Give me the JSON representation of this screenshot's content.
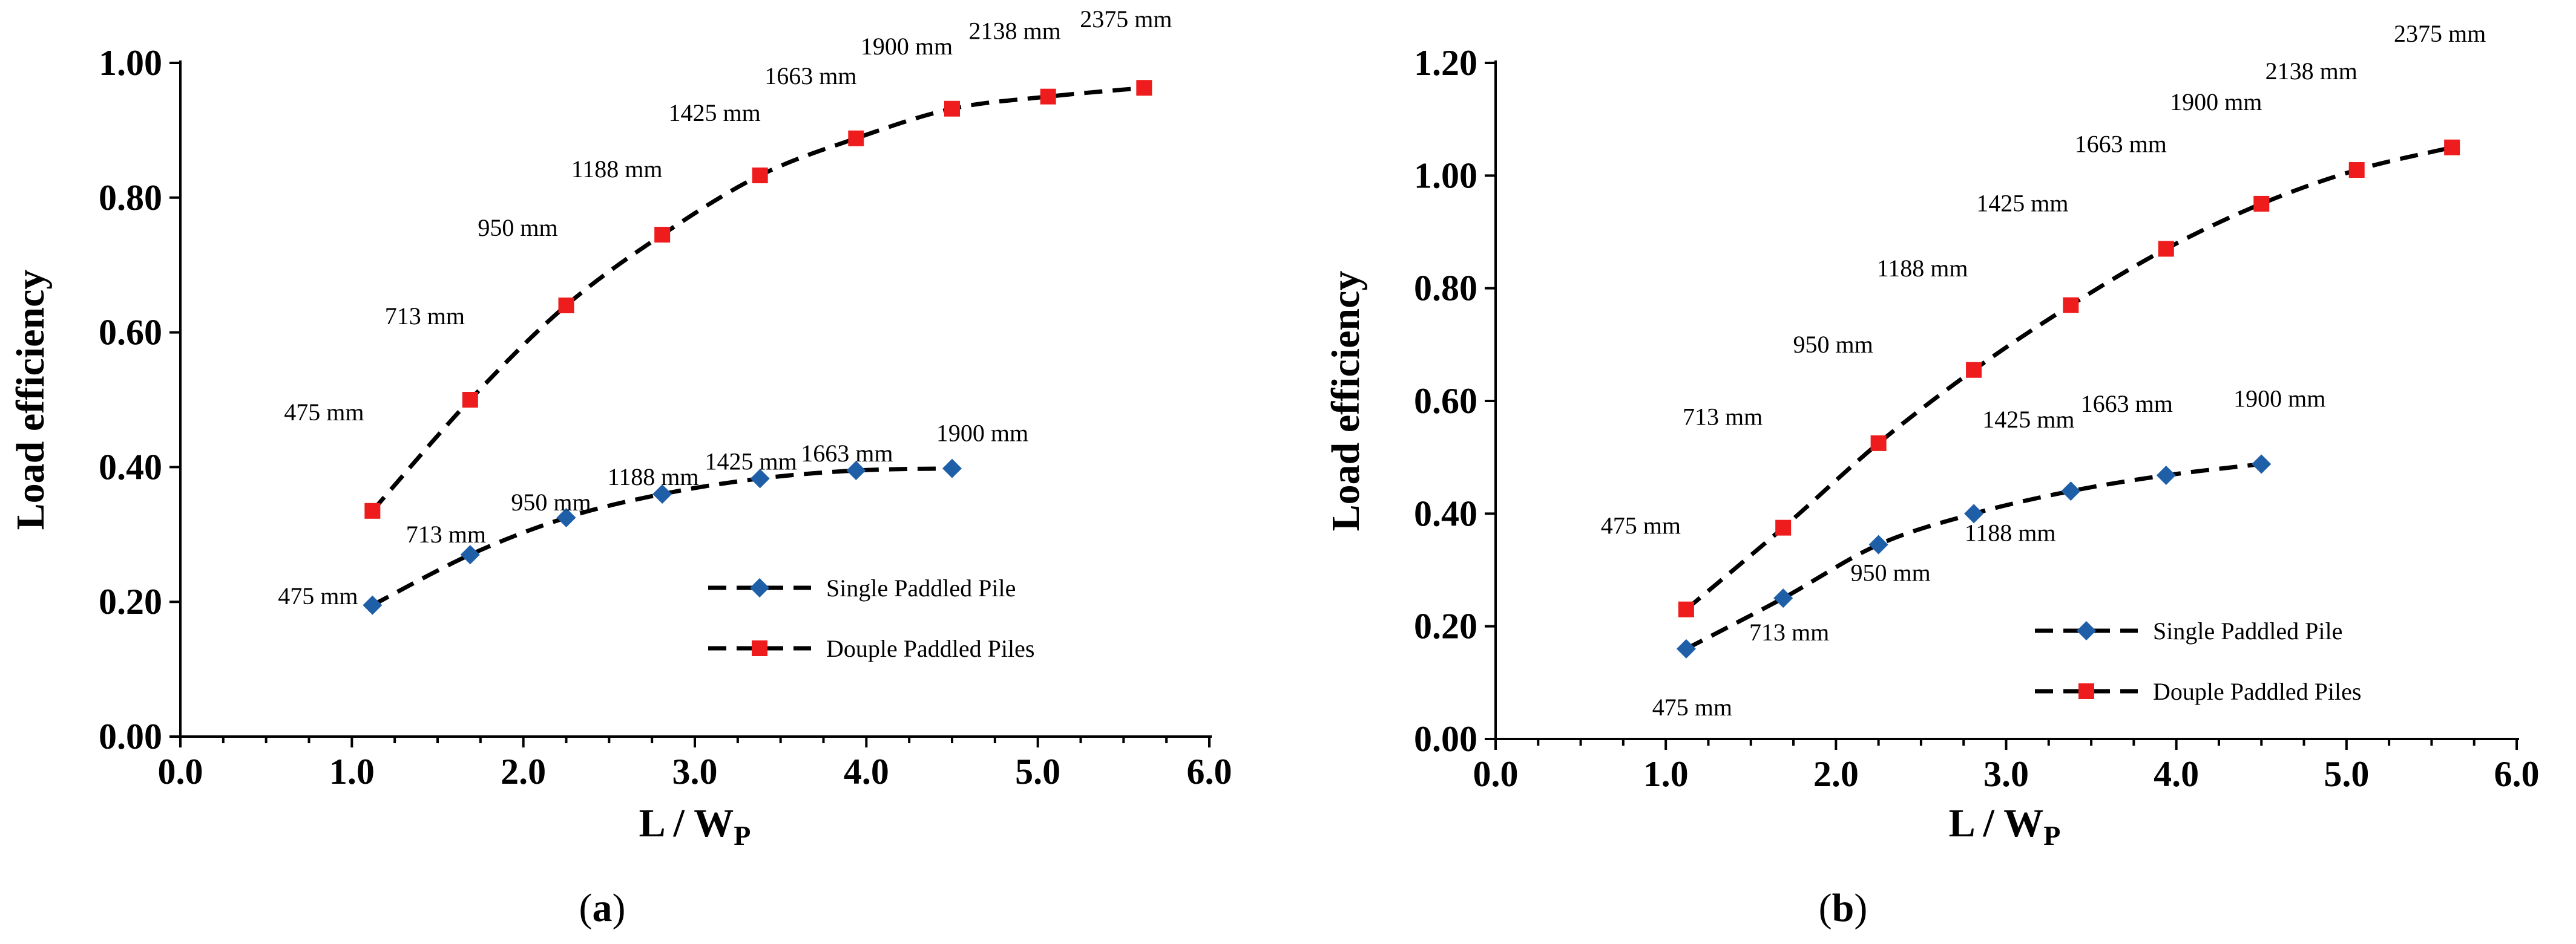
{
  "chart_data": [
    {
      "type": "line",
      "panel": "a",
      "caption_letter": "a",
      "xlabel": "L / W",
      "xlabel_sub": "P",
      "ylabel": "Load efficiency",
      "xlim": [
        0,
        6
      ],
      "ylim": [
        0,
        1
      ],
      "xticks": [
        0,
        1,
        2,
        3,
        4,
        5,
        6
      ],
      "yticks": [
        0,
        0.2,
        0.4,
        0.6,
        0.8,
        1.0
      ],
      "xtick_labels": [
        "0.0",
        "1.0",
        "2.0",
        "3.0",
        "4.0",
        "5.0",
        "6.0"
      ],
      "ytick_labels": [
        "0.00",
        "0.20",
        "0.40",
        "0.60",
        "0.80",
        "1.00"
      ],
      "legend_position": "center-right",
      "series": [
        {
          "name": "Single Paddled Pile",
          "marker": "diamond",
          "color": "#1f5fa8",
          "x": [
            1.12,
            1.69,
            2.25,
            2.81,
            3.38,
            3.94,
            4.5
          ],
          "y": [
            0.195,
            0.27,
            0.325,
            0.36,
            0.383,
            0.395,
            0.398
          ],
          "labels": [
            "475 mm",
            "713 mm",
            "950 mm",
            "1188 mm",
            "1425 mm",
            "1663 mm",
            "1900 mm"
          ]
        },
        {
          "name": "Douple Paddled Piles",
          "marker": "square",
          "color": "#ee1c1c",
          "x": [
            1.12,
            1.69,
            2.25,
            2.81,
            3.38,
            3.94,
            4.5,
            5.06,
            5.62
          ],
          "y": [
            0.335,
            0.5,
            0.64,
            0.745,
            0.833,
            0.888,
            0.932,
            0.95,
            0.963
          ],
          "labels": [
            "475 mm",
            "713 mm",
            "950 mm",
            "1188 mm",
            "1425 mm",
            "1663 mm",
            "1900 mm",
            "2138 mm",
            "2375 mm"
          ]
        }
      ]
    },
    {
      "type": "line",
      "panel": "b",
      "caption_letter": "b",
      "xlabel": "L / W",
      "xlabel_sub": "P",
      "ylabel": "Load efficiency",
      "xlim": [
        0,
        6
      ],
      "ylim": [
        0,
        1.2
      ],
      "xticks": [
        0,
        1,
        2,
        3,
        4,
        5,
        6
      ],
      "yticks": [
        0,
        0.2,
        0.4,
        0.6,
        0.8,
        1.0,
        1.2
      ],
      "xtick_labels": [
        "0.0",
        "1.0",
        "2.0",
        "3.0",
        "4.0",
        "5.0",
        "6.0"
      ],
      "ytick_labels": [
        "0.00",
        "0.20",
        "0.40",
        "0.60",
        "0.80",
        "1.00",
        "1.20"
      ],
      "legend_position": "bottom-right",
      "series": [
        {
          "name": "Single Paddled Pile",
          "marker": "diamond",
          "color": "#1f5fa8",
          "x": [
            1.12,
            1.69,
            2.25,
            2.81,
            3.38,
            3.94,
            4.5
          ],
          "y": [
            0.16,
            0.25,
            0.345,
            0.4,
            0.44,
            0.468,
            0.488
          ],
          "labels": [
            "475 mm",
            "713 mm",
            "950 mm",
            "1188 mm",
            "1425 mm",
            "1663 mm",
            "1900 mm"
          ]
        },
        {
          "name": "Douple Paddled Piles",
          "marker": "square",
          "color": "#ee1c1c",
          "x": [
            1.12,
            1.69,
            2.25,
            2.81,
            3.38,
            3.94,
            4.5,
            5.06,
            5.62
          ],
          "y": [
            0.23,
            0.375,
            0.525,
            0.655,
            0.77,
            0.87,
            0.95,
            1.01,
            1.05
          ],
          "labels": [
            "475 mm",
            "713 mm",
            "950 mm",
            "1188 mm",
            "1425 mm",
            "1663 mm",
            "1900 mm",
            "2138 mm",
            "2375 mm"
          ]
        }
      ]
    }
  ]
}
